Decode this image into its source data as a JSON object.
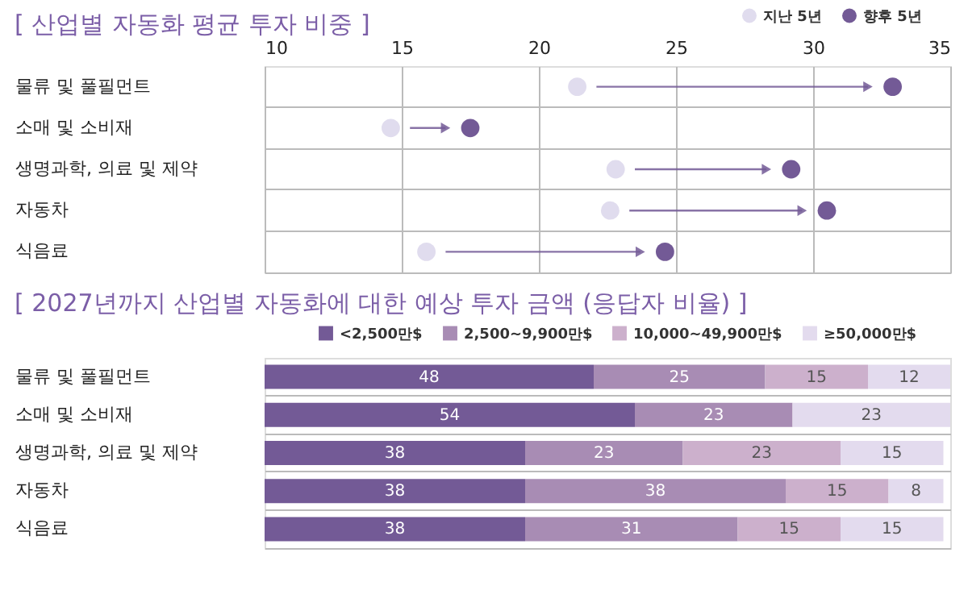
{
  "chart_data": [
    {
      "type": "scatter",
      "orientation": "horizontal",
      "title": "[ 산업별 자동화 평균 투자 비중 ]",
      "categories": [
        "물류 및 풀필먼트",
        "소매 및 소비재",
        "생명과학, 의료 및 제약",
        "자동차",
        "식음료"
      ],
      "series": [
        {
          "name": "지난 5년",
          "color": "#e0dcee",
          "values": [
            21.4,
            14.6,
            22.8,
            22.6,
            15.9
          ]
        },
        {
          "name": "향후 5년",
          "color": "#735a96",
          "values": [
            32.9,
            17.5,
            29.2,
            30.5,
            24.6
          ]
        }
      ],
      "xlim": [
        10,
        35
      ],
      "xticks": [
        10,
        15,
        20,
        25,
        30,
        35
      ],
      "grid": true,
      "legend": "top right",
      "marker": "circle"
    },
    {
      "type": "bar",
      "orientation": "horizontal",
      "stacked": true,
      "title": "[ 2027년까지 산업별 자동화에 대한 예상 투자 금액 (응답자 비율) ]",
      "categories": [
        "물류 및 풀필먼트",
        "소매 및 소비재",
        "생명과학, 의료 및 제약",
        "자동차",
        "식음료"
      ],
      "series": [
        {
          "name": "<2,500만$",
          "color": "#735a96",
          "values": [
            48,
            54,
            38,
            38,
            38
          ]
        },
        {
          "name": "2,500~9,900만$",
          "color": "#a88cb4",
          "values": [
            25,
            23,
            23,
            38,
            31
          ]
        },
        {
          "name": "10,000~49,900만$",
          "color": "#ccb0cc",
          "values": [
            15,
            null,
            23,
            15,
            15
          ]
        },
        {
          "name": "≥50,000만$",
          "color": "#e3dbee",
          "values": [
            12,
            23,
            15,
            8,
            15
          ]
        }
      ],
      "data_labels": true,
      "legend": "top right",
      "grid": "y"
    }
  ]
}
